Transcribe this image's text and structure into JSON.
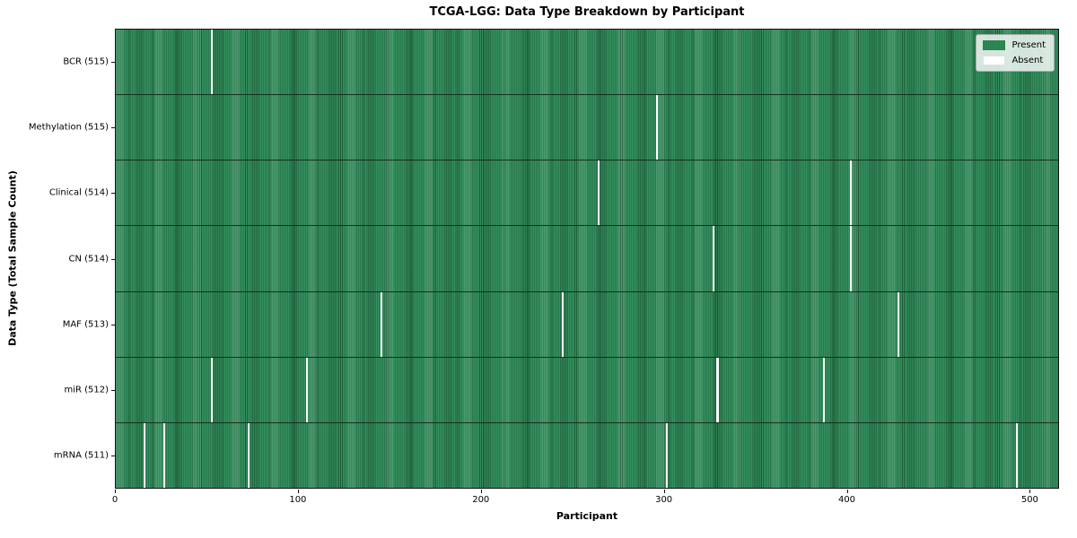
{
  "chart_data": {
    "type": "heatmap",
    "title": "TCGA-LGG: Data Type Breakdown by Participant",
    "xlabel": "Participant",
    "ylabel": "Data Type (Total Sample Count)",
    "n_participants": 516,
    "xlim": [
      0,
      516
    ],
    "x_ticks": [
      0,
      100,
      200,
      300,
      400,
      500
    ],
    "grid": false,
    "legend": {
      "position": "upper right",
      "entries": [
        {
          "label": "Present",
          "color": "#2e8b57"
        },
        {
          "label": "Absent",
          "color": "#ffffff"
        }
      ]
    },
    "rows": [
      {
        "label": "BCR (515)",
        "data_type": "BCR",
        "present_count": 515,
        "absent_count": 1,
        "absent_indices": [
          52
        ]
      },
      {
        "label": "Methylation (515)",
        "data_type": "Methylation",
        "present_count": 515,
        "absent_count": 1,
        "absent_indices": [
          296
        ]
      },
      {
        "label": "Clinical (514)",
        "data_type": "Clinical",
        "present_count": 514,
        "absent_count": 2,
        "absent_indices": [
          264,
          402
        ]
      },
      {
        "label": "CN (514)",
        "data_type": "CN",
        "present_count": 514,
        "absent_count": 2,
        "absent_indices": [
          327,
          402
        ]
      },
      {
        "label": "MAF (513)",
        "data_type": "MAF",
        "present_count": 513,
        "absent_count": 3,
        "absent_indices": [
          145,
          244,
          428
        ]
      },
      {
        "label": "miR (512)",
        "data_type": "miR",
        "present_count": 512,
        "absent_count": 4,
        "absent_indices": [
          52,
          104,
          329,
          387
        ]
      },
      {
        "label": "mRNA (511)",
        "data_type": "mRNA",
        "present_count": 511,
        "absent_count": 5,
        "absent_indices": [
          15,
          26,
          72,
          301,
          493
        ]
      }
    ],
    "colors": {
      "present": "#2e8b57",
      "present_stripe_dark": "#1c5c38",
      "absent": "#fcfcfa",
      "row_separator": "#13301f",
      "axis": "#111111"
    }
  }
}
